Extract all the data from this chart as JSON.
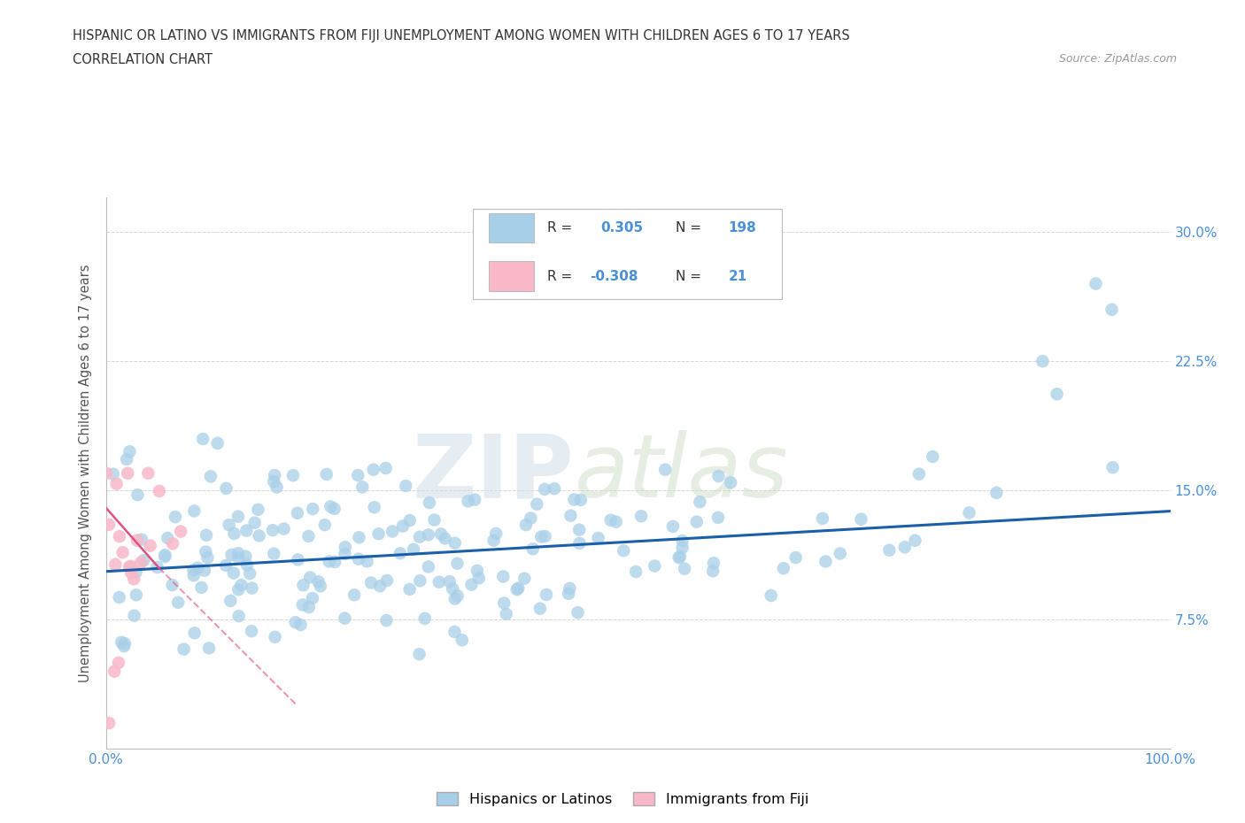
{
  "title_line1": "HISPANIC OR LATINO VS IMMIGRANTS FROM FIJI UNEMPLOYMENT AMONG WOMEN WITH CHILDREN AGES 6 TO 17 YEARS",
  "title_line2": "CORRELATION CHART",
  "source_text": "Source: ZipAtlas.com",
  "ylabel": "Unemployment Among Women with Children Ages 6 to 17 years",
  "xlim": [
    0,
    100
  ],
  "ylim": [
    0,
    32
  ],
  "R_blue": 0.305,
  "N_blue": 198,
  "R_pink": -0.308,
  "N_pink": 21,
  "blue_color": "#a8cfe8",
  "pink_color": "#f9b8c8",
  "blue_line_color": "#1a5fa8",
  "pink_line_color": "#e05080",
  "watermark_zip": "ZIP",
  "watermark_atlas": "atlas",
  "legend_label_blue": "Hispanics or Latinos",
  "legend_label_pink": "Immigrants from Fiji",
  "blue_trend_x0": 0,
  "blue_trend_y0": 10.3,
  "blue_trend_x1": 100,
  "blue_trend_y1": 13.8,
  "pink_solid_x0": 0,
  "pink_solid_y0": 14.0,
  "pink_solid_x1": 5,
  "pink_solid_y1": 10.5,
  "pink_dash_x0": 5,
  "pink_dash_y0": 10.5,
  "pink_dash_x1": 18,
  "pink_dash_y1": 2.5,
  "background_color": "#ffffff",
  "grid_color": "#cccccc",
  "title_color": "#333333",
  "axis_label_color": "#555555",
  "tick_label_color": "#4a90d9",
  "right_tick_color": "#4a90d9",
  "legend_text_dark": "#333333",
  "legend_text_blue": "#4a90d9"
}
